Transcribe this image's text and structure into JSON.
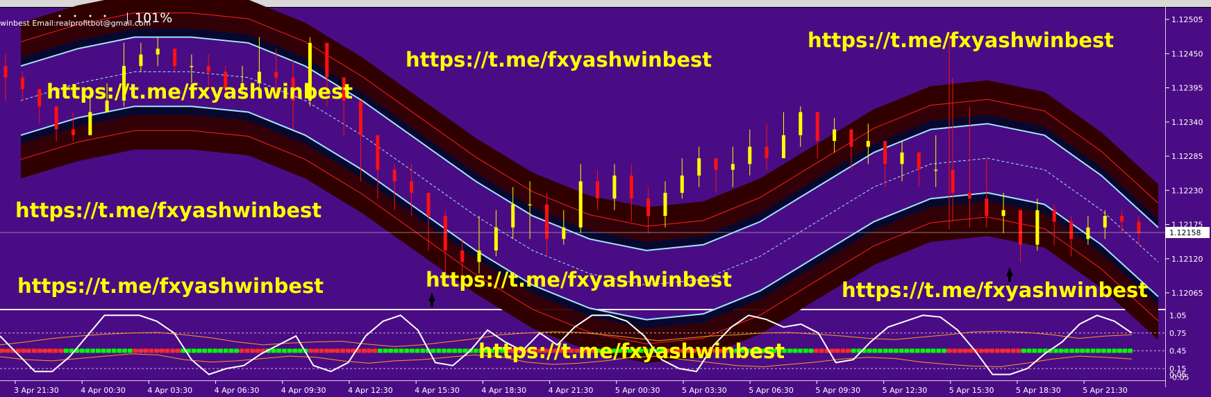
{
  "header": {
    "zoom_text": "101%",
    "email_text": "winbest Email:realprofitbot@gmail.com"
  },
  "watermarks": [
    "https://t.me/fxyashwinbest",
    "https://t.me/fxyashwinbest",
    "https://t.me/fxyashwinbest",
    "https://t.me/fxyashwinbest",
    "https://t.me/fxyashwinbest",
    "https://t.me/fxyashwinbest",
    "https://t.me/fxyashwinbest",
    "https://t.me/fxyashwinbest"
  ],
  "colors": {
    "background": "#4a0c84",
    "band_dark": "#300000",
    "band_navy": "#08082e",
    "band_cyan": "#9ee8ff",
    "band_red": "#ff2020",
    "bull": "#ffff00",
    "bear": "#ff1010",
    "watermark": "#ffff00",
    "oscillator_white": "#ffffff",
    "oscillator_orange": "#ff9a20",
    "oscillator_green": "#00ff00",
    "oscillator_red": "#ff2a2a"
  },
  "chart_data": [
    {
      "type": "line",
      "title": "",
      "price_axis_labels": [
        "1.12505",
        "1.12450",
        "1.12395",
        "1.12340",
        "1.12285",
        "1.12230",
        "1.12175",
        "1.12120",
        "1.12065"
      ],
      "current_price_label": "1.12158",
      "time_axis_labels": [
        "3 Apr 21:30",
        "4 Apr 00:30",
        "4 Apr 03:30",
        "4 Apr 06:30",
        "4 Apr 09:30",
        "4 Apr 12:30",
        "4 Apr 15:30",
        "4 Apr 18:30",
        "4 Apr 21:30",
        "5 Apr 00:30",
        "5 Apr 03:30",
        "5 Apr 06:30",
        "5 Apr 09:30",
        "5 Apr 12:30",
        "5 Apr 15:30",
        "5 Apr 18:30",
        "5 Apr 21:30"
      ],
      "ylim": [
        1.1202,
        1.1254
      ],
      "price_series_close": [
        1.1242,
        1.124,
        1.1237,
        1.1233,
        1.1232,
        1.1236,
        1.1238,
        1.1244,
        1.1246,
        1.1247,
        1.1244,
        1.1244,
        1.1243,
        1.124,
        1.1241,
        1.1243,
        1.1242,
        1.1238,
        1.1248,
        1.1242,
        1.1238,
        1.1232,
        1.1226,
        1.1224,
        1.1222,
        1.1218,
        1.1212,
        1.121,
        1.1212,
        1.1216,
        1.122,
        1.122,
        1.1214,
        1.1216,
        1.1224,
        1.1221,
        1.1225,
        1.1221,
        1.1218,
        1.1222,
        1.1225,
        1.1228,
        1.1226,
        1.1227,
        1.123,
        1.1228,
        1.1232,
        1.1236,
        1.1231,
        1.1233,
        1.123,
        1.1231,
        1.1227,
        1.1229,
        1.1226,
        1.1226,
        1.1222,
        1.1221,
        1.1218,
        1.1219,
        1.1213,
        1.1219,
        1.1217,
        1.1214,
        1.1216,
        1.1218,
        1.1217,
        1.1215
      ],
      "price_series_high": [
        1.1246,
        1.1243,
        1.124,
        1.1236,
        1.1236,
        1.1239,
        1.1241,
        1.1248,
        1.1248,
        1.1249,
        1.1247,
        1.1246,
        1.1246,
        1.1244,
        1.1244,
        1.1249,
        1.1247,
        1.1245,
        1.1249,
        1.1248,
        1.1242,
        1.1236,
        1.1231,
        1.1227,
        1.1227,
        1.1221,
        1.1219,
        1.1214,
        1.1218,
        1.1219,
        1.1223,
        1.1224,
        1.1222,
        1.1219,
        1.1227,
        1.1226,
        1.1227,
        1.1227,
        1.1223,
        1.1224,
        1.1228,
        1.123,
        1.1228,
        1.123,
        1.1233,
        1.1234,
        1.1236,
        1.1237,
        1.1236,
        1.1235,
        1.1233,
        1.1234,
        1.123,
        1.1231,
        1.1229,
        1.1232,
        1.1242,
        1.1237,
        1.1228,
        1.1222,
        1.1218,
        1.1221,
        1.122,
        1.1218,
        1.1218,
        1.1219,
        1.1219,
        1.1218
      ],
      "price_series_low": [
        1.1238,
        1.1238,
        1.1234,
        1.1231,
        1.1231,
        1.1234,
        1.1236,
        1.1237,
        1.1243,
        1.1244,
        1.1243,
        1.1241,
        1.124,
        1.1239,
        1.1239,
        1.124,
        1.1238,
        1.1233,
        1.1237,
        1.1237,
        1.1232,
        1.1224,
        1.1221,
        1.1219,
        1.1218,
        1.1212,
        1.1208,
        1.1206,
        1.1208,
        1.1211,
        1.1214,
        1.1214,
        1.1211,
        1.1213,
        1.1215,
        1.1219,
        1.1219,
        1.1217,
        1.1215,
        1.1216,
        1.1221,
        1.1223,
        1.1222,
        1.1223,
        1.1225,
        1.1226,
        1.1228,
        1.123,
        1.1228,
        1.1229,
        1.1226,
        1.1227,
        1.1223,
        1.1224,
        1.1223,
        1.1223,
        1.1217,
        1.1216,
        1.1216,
        1.1215,
        1.121,
        1.1212,
        1.1213,
        1.1211,
        1.1213,
        1.1214,
        1.1215,
        1.1213
      ],
      "band_center": [
        1.1238,
        1.1241,
        1.1243,
        1.1243,
        1.1242,
        1.1238,
        1.1232,
        1.1225,
        1.1218,
        1.1212,
        1.1208,
        1.1206,
        1.1207,
        1.1211,
        1.1217,
        1.1223,
        1.1227,
        1.1228,
        1.1226,
        1.1219,
        1.121
      ],
      "band_offsets": {
        "outer": 0.00135,
        "red": 0.00102,
        "cyan": 0.0006,
        "navy": 0.00075
      }
    },
    {
      "type": "line",
      "title": "",
      "oscillator_axis_labels": [
        "1.05",
        "0.75",
        "0.45",
        "0.15",
        "0.05"
      ],
      "oscillator_axis_extra": "-0.05",
      "ylim": [
        -0.05,
        1.1
      ],
      "white_series": [
        0.7,
        0.4,
        0.1,
        0.1,
        0.35,
        0.7,
        1.05,
        1.05,
        1.05,
        0.95,
        0.75,
        0.3,
        0.05,
        0.15,
        0.2,
        0.4,
        0.55,
        0.7,
        0.2,
        0.1,
        0.25,
        0.7,
        0.95,
        1.05,
        0.8,
        0.25,
        0.2,
        0.45,
        0.8,
        0.6,
        0.45,
        0.75,
        0.55,
        0.85,
        1.05,
        1.05,
        0.95,
        0.7,
        0.3,
        0.15,
        0.1,
        0.55,
        0.85,
        1.05,
        0.98,
        0.85,
        0.9,
        0.75,
        0.25,
        0.3,
        0.6,
        0.85,
        0.95,
        1.05,
        1.02,
        0.8,
        0.45,
        0.05,
        0.05,
        0.15,
        0.4,
        0.6,
        0.9,
        1.05,
        0.95,
        0.75
      ],
      "orange_upper": [
        0.55,
        0.6,
        0.66,
        0.7,
        0.73,
        0.75,
        0.76,
        0.72,
        0.67,
        0.6,
        0.55,
        0.58,
        0.6,
        0.61,
        0.56,
        0.52,
        0.55,
        0.6,
        0.65,
        0.72,
        0.75,
        0.77,
        0.76,
        0.72,
        0.67,
        0.62,
        0.66,
        0.7,
        0.72,
        0.75,
        0.76,
        0.73,
        0.7,
        0.66,
        0.64,
        0.68,
        0.72,
        0.77,
        0.78,
        0.76,
        0.72,
        0.66,
        0.7,
        0.72
      ],
      "orange_lower": [
        0.35,
        0.3,
        0.28,
        0.32,
        0.36,
        0.4,
        0.38,
        0.3,
        0.26,
        0.28,
        0.32,
        0.36,
        0.34,
        0.28,
        0.24,
        0.28,
        0.3,
        0.34,
        0.38,
        0.35,
        0.26,
        0.22,
        0.24,
        0.28,
        0.34,
        0.36,
        0.3,
        0.25,
        0.2,
        0.18,
        0.22,
        0.26,
        0.31,
        0.34,
        0.32,
        0.26,
        0.22,
        0.19,
        0.18,
        0.24,
        0.31,
        0.36,
        0.34,
        0.31
      ],
      "signal_colors": "RRRRRRRRRRRRGGGGGGGGGGGGGRRRRRRRRRGGGGGGGGGGGRRRRRGGGGGGGGRRRRRRRRRRRRRGGGGGGGGGGGGGGGGGGGGGGGGRRRRRRRRRRRRRRRRRGGGGGGGGGGGGGRRRRRRRRRRRRGGGGGGGGGGGGGGGGRRRRRRRGGGGGGGGGGGGGGGGGGRRRRRRRRRRRRRRGGGGGGGGGGGGGGGGGGGGG"
    }
  ]
}
